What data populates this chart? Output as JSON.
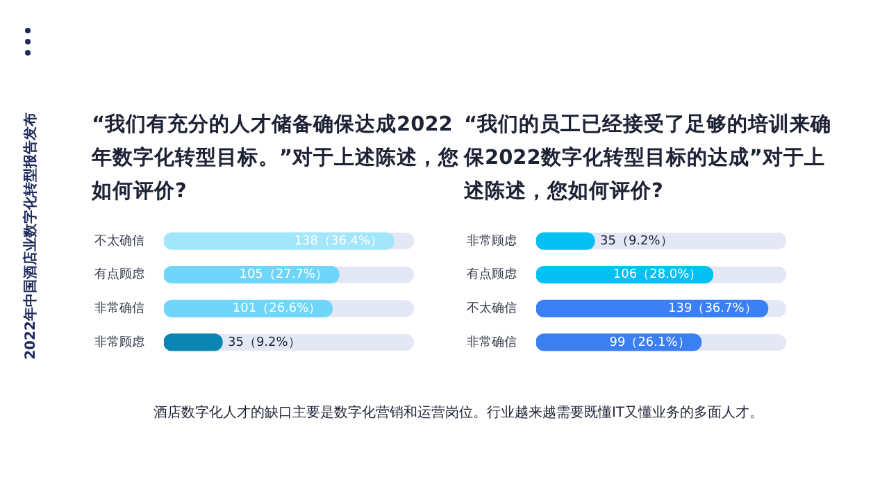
{
  "chart_data": [
    {
      "type": "bar",
      "orientation": "horizontal",
      "title": "“我们有充分的人才储备确保达成2022年数字化转型目标。”对于上述陈述，您如何评价?",
      "categories": [
        "不太确信",
        "有点顾虑",
        "非常确信",
        "非常顾虑"
      ],
      "values": [
        138,
        105,
        101,
        35
      ],
      "value_labels": [
        "138（36.4%）",
        "105（27.7%）",
        "101（26.6%）",
        "35（9.2%）"
      ],
      "colors": [
        "#a3e6fb",
        "#6fd6fa",
        "#6fd6fa",
        "#0b86b4"
      ],
      "xlim": [
        0,
        150
      ],
      "tick_labels": "y",
      "grid": false,
      "legend": false
    },
    {
      "type": "bar",
      "orientation": "horizontal",
      "title": "“我们的员工已经接受了足够的培训来确保2022数字化转型目标的达成”对于上述陈述，您如何评价?",
      "categories": [
        "非常顾虑",
        "有点顾虑",
        "不太确信",
        "非常确信"
      ],
      "values": [
        35,
        106,
        139,
        99
      ],
      "value_labels": [
        "35（9.2%）",
        "106（28.0%）",
        "139（36.7%）",
        "99（26.1%）"
      ],
      "colors": [
        "#05c0f2",
        "#05c0f2",
        "#3b7ff5",
        "#3b7ff5"
      ],
      "xlim": [
        0,
        150
      ],
      "tick_labels": "y",
      "grid": false,
      "legend": false
    },
    {
      "type": "other",
      "title": "2022年中国酒店业数字化转型报告发布",
      "annotations": [
        "酒店数字化人才的缺口主要是数字化营销和运营岗位。行业越来越需要既懂IT又懂业务的多面人才。"
      ]
    }
  ]
}
